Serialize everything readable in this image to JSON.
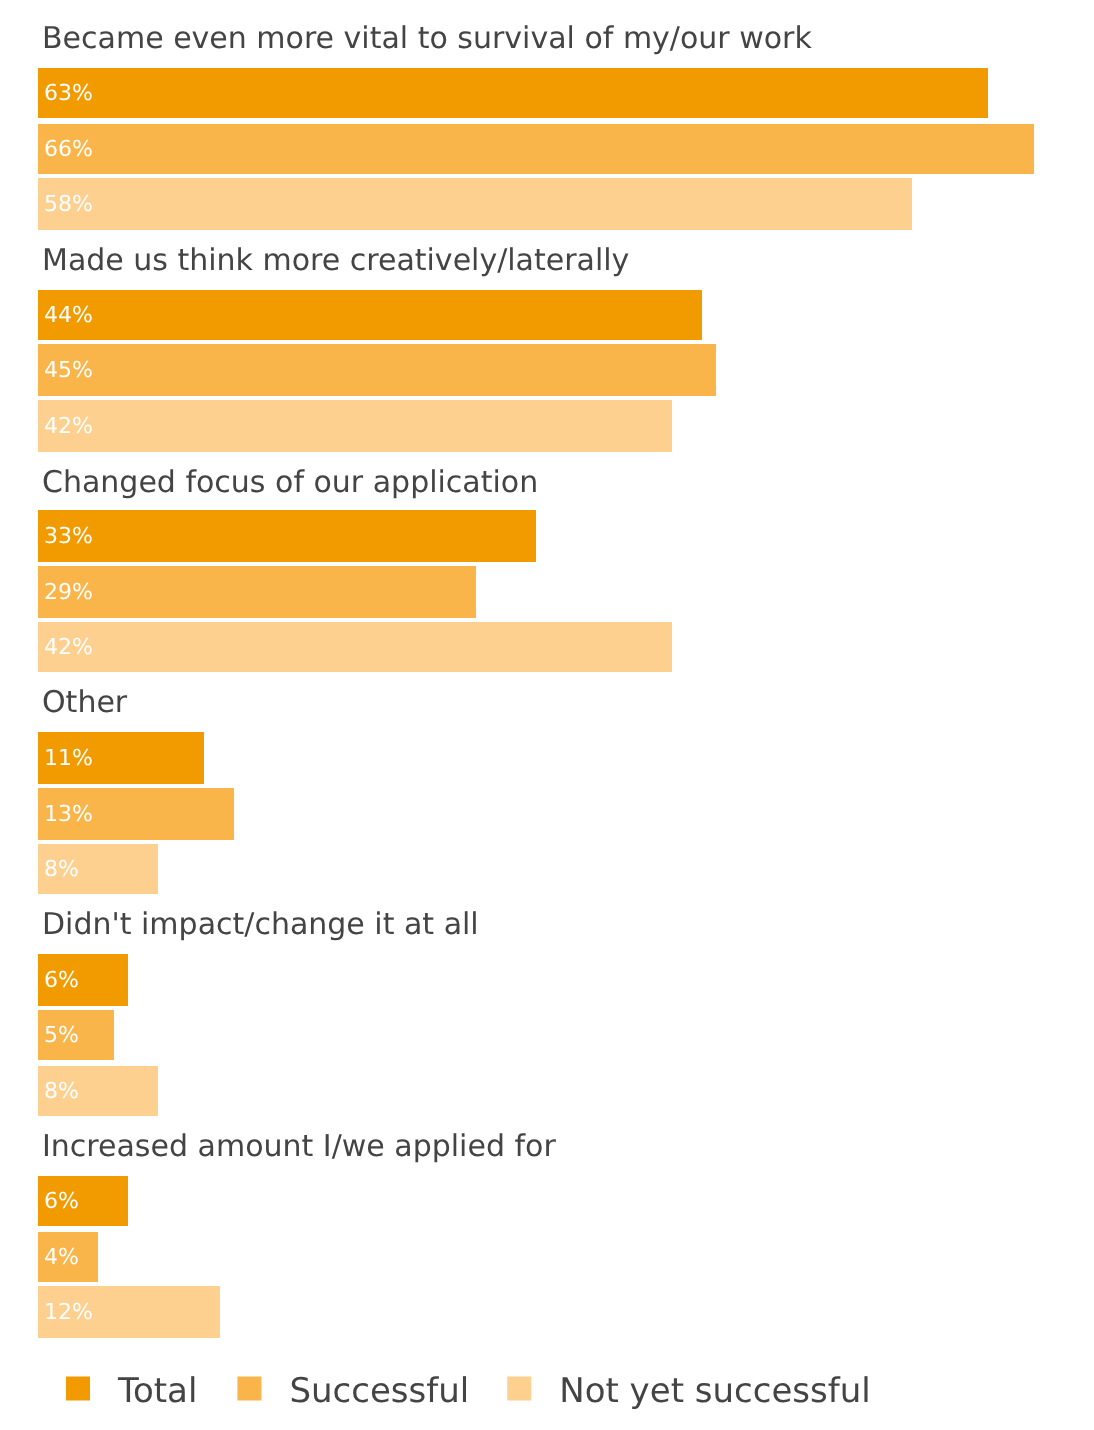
{
  "chart_data": {
    "type": "bar",
    "orientation": "horizontal",
    "categories": [
      "Became even more vital to survival of my/our work",
      "Made us think more creatively/laterally",
      "Changed focus of our application",
      "Other",
      "Didn't impact/change it at all",
      "Increased amount I/we applied for"
    ],
    "series": [
      {
        "name": "Total",
        "color": "#f29b00",
        "values": [
          63,
          44,
          33,
          11,
          6,
          6
        ],
        "value_labels": [
          "63%",
          "44%",
          "33%",
          "11%",
          "6%",
          "6%"
        ]
      },
      {
        "name": "Successful",
        "color": "#f9b54a",
        "values": [
          66,
          45,
          29,
          13,
          5,
          4
        ],
        "value_labels": [
          "66%",
          "45%",
          "29%",
          "13%",
          "5%",
          "4%"
        ]
      },
      {
        "name": "Not yet successful",
        "color": "#fdd08f",
        "values": [
          58,
          42,
          42,
          8,
          8,
          12
        ],
        "value_labels": [
          "58%",
          "42%",
          "42%",
          "8%",
          "8%",
          "12%"
        ]
      }
    ],
    "xlim": [
      0,
      70
    ],
    "legend": "bottom"
  }
}
